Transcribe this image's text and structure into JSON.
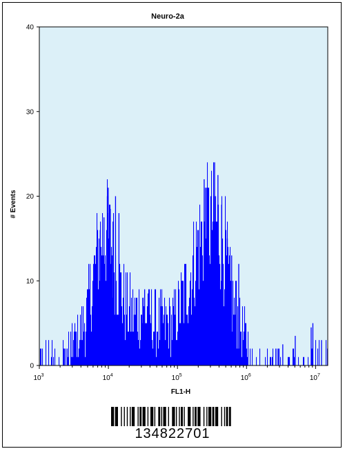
{
  "chart_data": {
    "type": "bar",
    "title": "Neuro-2a",
    "xlabel": "FL1-H",
    "ylabel": "# Events",
    "x_scale": "log",
    "xlim": [
      1000,
      15000000
    ],
    "ylim": [
      0,
      40
    ],
    "y_ticks": [
      "0",
      "10",
      "20",
      "30",
      "40"
    ],
    "x_ticks": [
      {
        "value": 1000,
        "base": "10",
        "exp": "3"
      },
      {
        "value": 10000,
        "base": "10",
        "exp": "4"
      },
      {
        "value": 100000,
        "base": "10",
        "exp": "5"
      },
      {
        "value": 1000000,
        "base": "10",
        "exp": "6"
      },
      {
        "value": 10000000,
        "base": "10",
        "exp": "7"
      }
    ],
    "grid": false,
    "colors": {
      "fill": "#0000ff",
      "background": "#dcf0f8"
    },
    "profile": [
      [
        1000,
        1
      ],
      [
        2000,
        1.5
      ],
      [
        3000,
        2.5
      ],
      [
        4000,
        4
      ],
      [
        5000,
        6.5
      ],
      [
        6000,
        10
      ],
      [
        7000,
        13.5
      ],
      [
        8000,
        15
      ],
      [
        9000,
        15.5
      ],
      [
        10000,
        15
      ],
      [
        11000,
        14
      ],
      [
        13000,
        11.5
      ],
      [
        15000,
        9
      ],
      [
        18000,
        7
      ],
      [
        22000,
        6
      ],
      [
        26000,
        6
      ],
      [
        30000,
        6.5
      ],
      [
        35000,
        6
      ],
      [
        40000,
        5.5
      ],
      [
        50000,
        5
      ],
      [
        60000,
        5
      ],
      [
        80000,
        5
      ],
      [
        100000,
        6
      ],
      [
        130000,
        8.5
      ],
      [
        170000,
        12
      ],
      [
        200000,
        14.5
      ],
      [
        250000,
        16.5
      ],
      [
        300000,
        17
      ],
      [
        350000,
        17
      ],
      [
        400000,
        16
      ],
      [
        480000,
        14
      ],
      [
        550000,
        10
      ],
      [
        650000,
        7
      ],
      [
        800000,
        4.5
      ],
      [
        1000000,
        3
      ],
      [
        1300000,
        1.5
      ],
      [
        1600000,
        1
      ],
      [
        2000000,
        0.8
      ],
      [
        4000000,
        0.6
      ],
      [
        7000000,
        0.8
      ],
      [
        10000000,
        1.2
      ],
      [
        15000000,
        1.5
      ]
    ],
    "spikes": [
      [
        9800,
        21
      ],
      [
        9500,
        20
      ],
      [
        10500,
        18.5
      ],
      [
        12500,
        20
      ],
      [
        14000,
        18
      ],
      [
        8500,
        17.5
      ],
      [
        7500,
        16
      ],
      [
        11500,
        17
      ],
      [
        33000,
        9
      ],
      [
        37000,
        8.5
      ],
      [
        31000,
        8
      ],
      [
        240000,
        22
      ],
      [
        260000,
        21
      ],
      [
        340000,
        24
      ],
      [
        380000,
        22.5
      ],
      [
        300000,
        20
      ],
      [
        430000,
        19
      ],
      [
        520000,
        15
      ],
      [
        600000,
        13
      ],
      [
        760000,
        12
      ],
      [
        700000,
        10
      ],
      [
        9000000,
        5
      ],
      [
        8500000,
        4.5
      ],
      [
        12000000,
        3
      ],
      [
        5000000,
        3.5
      ],
      [
        3300000,
        2.5
      ]
    ]
  },
  "barcode": {
    "number": "134822701",
    "pattern": "3133121212113311213212311321113213311211211332112133121131213312112123"
  }
}
